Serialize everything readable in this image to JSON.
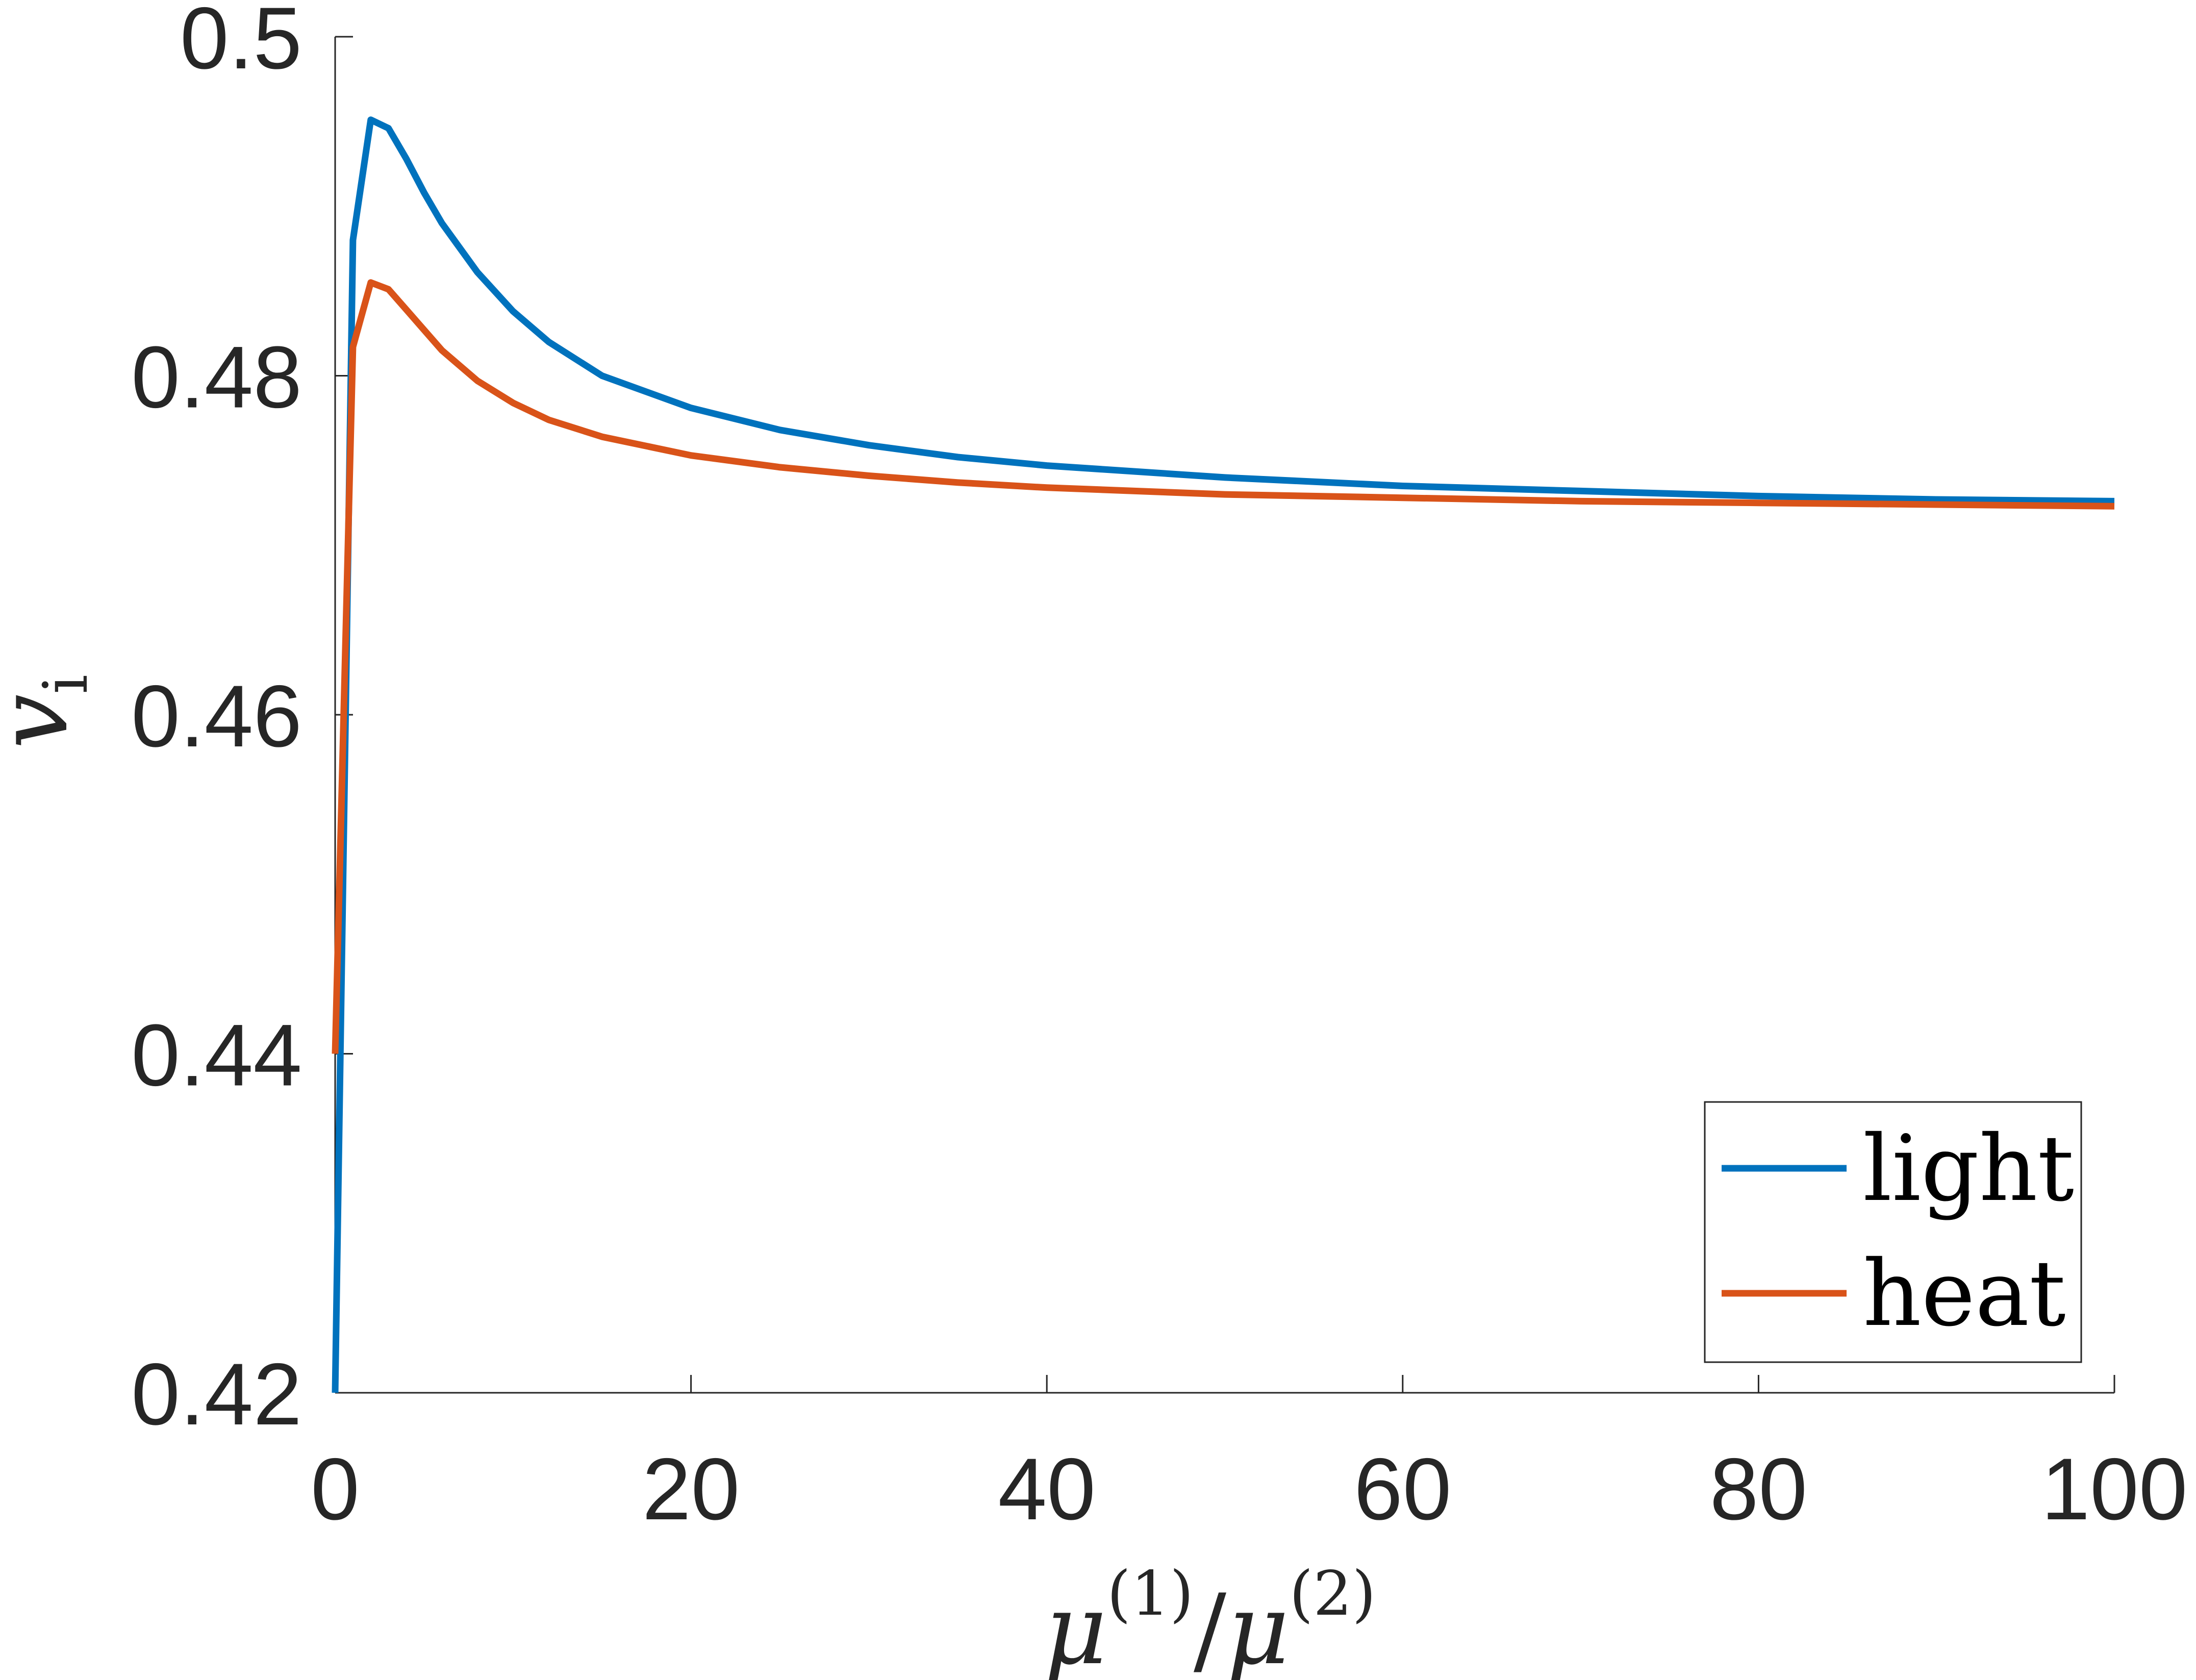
{
  "chart_data": {
    "type": "line",
    "title": "",
    "xlabel": {
      "base": "μ",
      "sup1": "(1)",
      "slash": "/",
      "base2": "μ",
      "sup2": "(2)"
    },
    "ylabel": {
      "base": "v",
      "sub": "i"
    },
    "xlim": [
      0,
      100
    ],
    "ylim": [
      0.42,
      0.5
    ],
    "xticks": [
      0,
      20,
      40,
      60,
      80,
      100
    ],
    "xtick_labels": [
      "0",
      "20",
      "40",
      "60",
      "80",
      "100"
    ],
    "yticks": [
      0.42,
      0.44,
      0.46,
      0.48,
      0.5
    ],
    "ytick_labels": [
      "0.42",
      "0.44",
      "0.46",
      "0.48",
      "0.5"
    ],
    "grid": false,
    "legend_position": "bottom-right",
    "series": [
      {
        "name": "light",
        "color": "#0072BD",
        "points": [
          [
            0,
            0.42
          ],
          [
            1,
            0.488
          ],
          [
            2,
            0.4951
          ],
          [
            3,
            0.4946
          ],
          [
            4,
            0.4928
          ],
          [
            5,
            0.4908
          ],
          [
            6,
            0.489
          ],
          [
            8,
            0.4861
          ],
          [
            10,
            0.4838
          ],
          [
            12,
            0.482
          ],
          [
            15,
            0.48
          ],
          [
            20,
            0.4781
          ],
          [
            25,
            0.4768
          ],
          [
            30,
            0.4759
          ],
          [
            35,
            0.4752
          ],
          [
            40,
            0.4747
          ],
          [
            50,
            0.474
          ],
          [
            60,
            0.4735
          ],
          [
            70,
            0.4732
          ],
          [
            80,
            0.4729
          ],
          [
            90,
            0.4727
          ],
          [
            100,
            0.4726
          ]
        ]
      },
      {
        "name": "heat",
        "color": "#D95319",
        "points": [
          [
            0,
            0.44
          ],
          [
            1,
            0.4817
          ],
          [
            2,
            0.4855
          ],
          [
            3,
            0.4851
          ],
          [
            4,
            0.4839
          ],
          [
            5,
            0.4827
          ],
          [
            6,
            0.4815
          ],
          [
            8,
            0.4797
          ],
          [
            10,
            0.4784
          ],
          [
            12,
            0.4774
          ],
          [
            15,
            0.4764
          ],
          [
            20,
            0.4753
          ],
          [
            25,
            0.4746
          ],
          [
            30,
            0.4741
          ],
          [
            35,
            0.4737
          ],
          [
            40,
            0.4734
          ],
          [
            50,
            0.473
          ],
          [
            60,
            0.4728
          ],
          [
            70,
            0.4726
          ],
          [
            80,
            0.4725
          ],
          [
            90,
            0.4724
          ],
          [
            100,
            0.4723
          ]
        ]
      }
    ]
  }
}
